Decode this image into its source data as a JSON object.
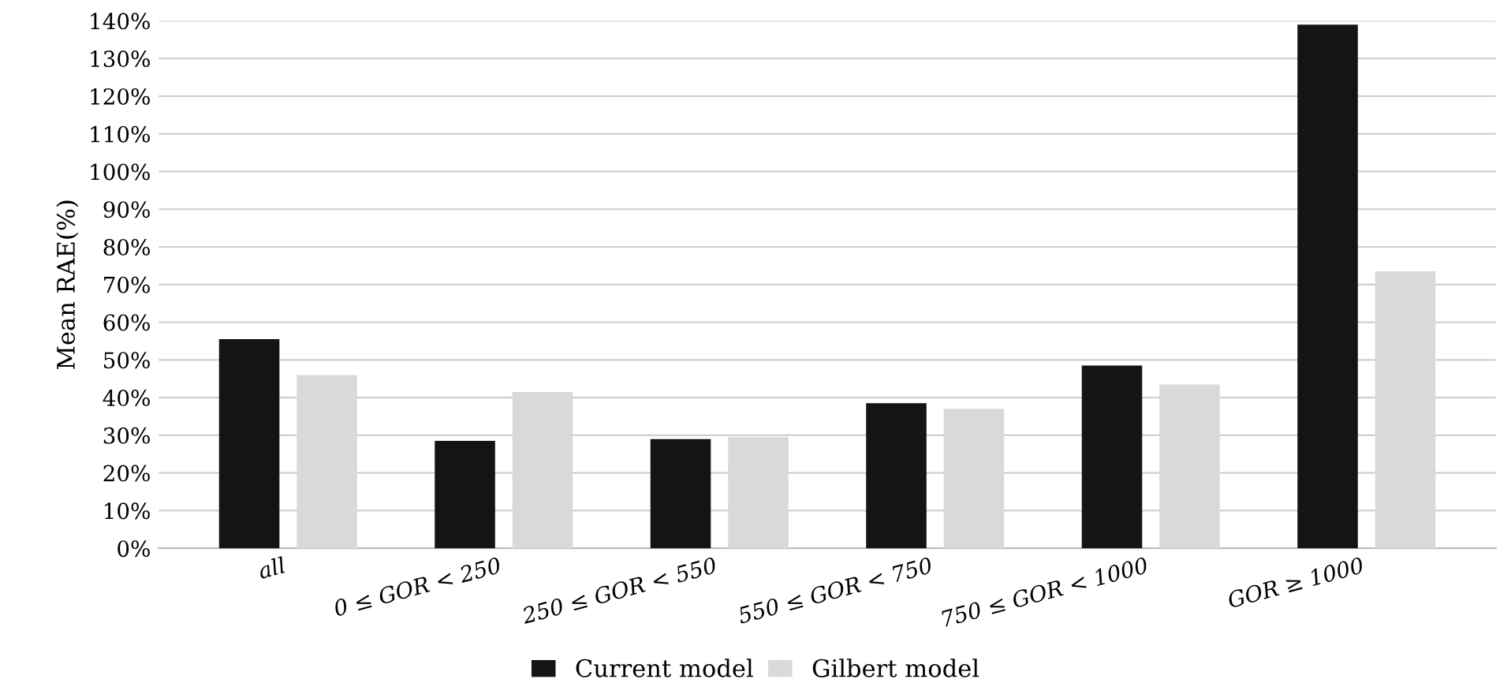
{
  "chart_data": {
    "type": "bar",
    "ylabel": "Mean RAE(%)",
    "categories": [
      "all",
      "0 ≤ GOR < 250",
      "250 ≤ GOR < 550",
      "550 ≤ GOR < 750",
      "750 ≤ GOR < 1000",
      "GOR ≥ 1000"
    ],
    "series": [
      {
        "name": "Current model",
        "color": "#141414",
        "values": [
          55.5,
          28.5,
          29,
          38.5,
          48.5,
          139
        ]
      },
      {
        "name": "Gilbert model",
        "color": "#d9d9d9",
        "values": [
          46,
          41.5,
          29.5,
          37,
          43.5,
          73.5
        ]
      }
    ],
    "ylim": [
      0,
      140
    ],
    "yticks": [
      {
        "value": 0,
        "label": "0%"
      },
      {
        "value": 10,
        "label": "10%"
      },
      {
        "value": 20,
        "label": "20%"
      },
      {
        "value": 30,
        "label": "30%"
      },
      {
        "value": 40,
        "label": "40%"
      },
      {
        "value": 50,
        "label": "50%"
      },
      {
        "value": 60,
        "label": "60%"
      },
      {
        "value": 70,
        "label": "70%"
      },
      {
        "value": 80,
        "label": "80%"
      },
      {
        "value": 90,
        "label": "90%"
      },
      {
        "value": 100,
        "label": "100%"
      },
      {
        "value": 110,
        "label": "110%"
      },
      {
        "value": 120,
        "label": "120%"
      },
      {
        "value": 130,
        "label": "130%"
      },
      {
        "value": 140,
        "label": "140%"
      }
    ],
    "grid": "y",
    "legend": "bottom"
  }
}
